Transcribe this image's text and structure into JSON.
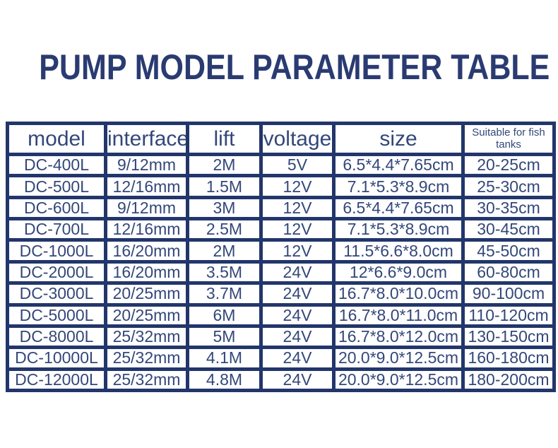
{
  "page": {
    "title": "PUMP MODEL PARAMETER TABLE"
  },
  "colors": {
    "border_navy": "#22366b",
    "text_navy": "#33477a",
    "title_navy": "#2a3b72",
    "background": "#ffffff"
  },
  "table": {
    "columns": [
      {
        "key": "model",
        "label": "model"
      },
      {
        "key": "interface",
        "label": "interface"
      },
      {
        "key": "lift",
        "label": "lift"
      },
      {
        "key": "voltage",
        "label": "voltage"
      },
      {
        "key": "size",
        "label": "size"
      },
      {
        "key": "tanks",
        "label": "Suitable for fish tanks"
      }
    ],
    "rows": [
      [
        "DC-400L",
        "9/12mm",
        "2M",
        "5V",
        "6.5*4.4*7.65cm",
        "20-25cm"
      ],
      [
        "DC-500L",
        "12/16mm",
        "1.5M",
        "12V",
        "7.1*5.3*8.9cm",
        "25-30cm"
      ],
      [
        "DC-600L",
        "9/12mm",
        "3M",
        "12V",
        "6.5*4.4*7.65cm",
        "30-35cm"
      ],
      [
        "DC-700L",
        "12/16mm",
        "2.5M",
        "12V",
        "7.1*5.3*8.9cm",
        "30-45cm"
      ],
      [
        "DC-1000L",
        "16/20mm",
        "2M",
        "12V",
        "11.5*6.6*8.0cm",
        "45-50cm"
      ],
      [
        "DC-2000L",
        "16/20mm",
        "3.5M",
        "24V",
        "12*6.6*9.0cm",
        "60-80cm"
      ],
      [
        "DC-3000L",
        "20/25mm",
        "3.7M",
        "24V",
        "16.7*8.0*10.0cm",
        "90-100cm"
      ],
      [
        "DC-5000L",
        "20/25mm",
        "6M",
        "24V",
        "16.7*8.0*11.0cm",
        "110-120cm"
      ],
      [
        "DC-8000L",
        "25/32mm",
        "5M",
        "24V",
        "16.7*8.0*12.0cm",
        "130-150cm"
      ],
      [
        "DC-10000L",
        "25/32mm",
        "4.1M",
        "24V",
        "20.0*9.0*12.5cm",
        "160-180cm"
      ],
      [
        "DC-12000L",
        "25/32mm",
        "4.8M",
        "24V",
        "20.0*9.0*12.5cm",
        "180-200cm"
      ]
    ]
  }
}
